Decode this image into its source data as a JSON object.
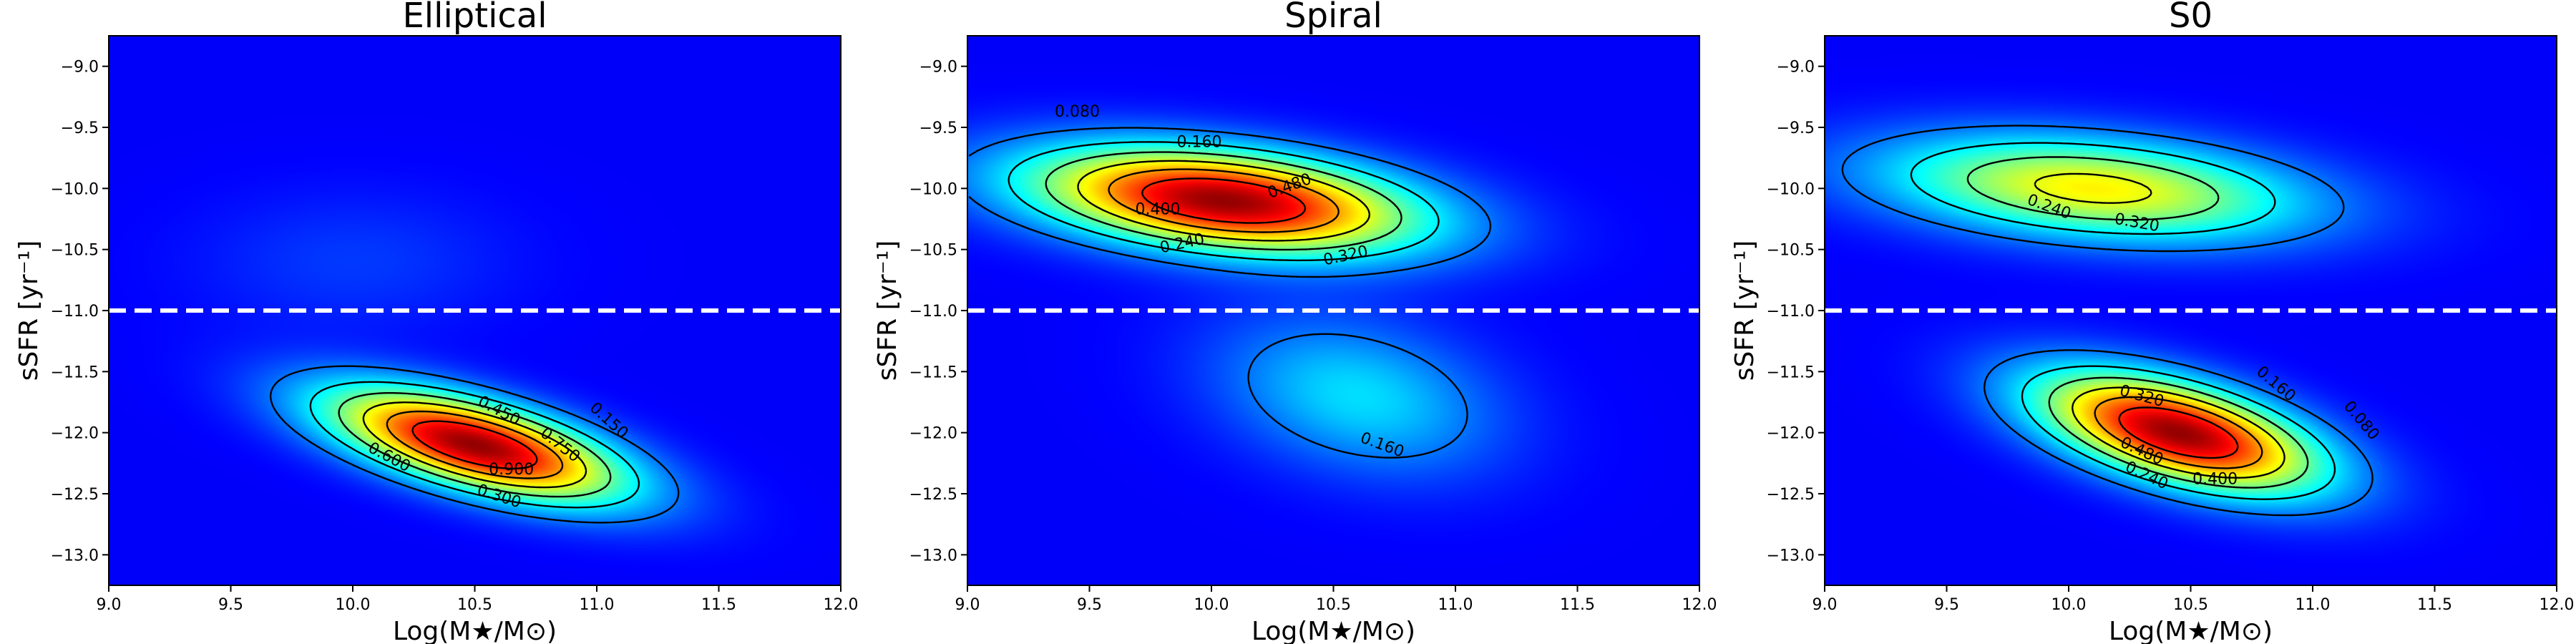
{
  "chart_data": [
    {
      "type": "heatmap",
      "title": "Elliptical",
      "xlabel": "Log(M★/M⊙)",
      "ylabel": "sSFR [yr⁻¹]",
      "xlim": [
        9.0,
        12.0
      ],
      "ylim": [
        -13.25,
        -8.75
      ],
      "xticks": [
        "9.0",
        "9.5",
        "10.0",
        "10.5",
        "11.0",
        "11.5",
        "12.0"
      ],
      "yticks": [
        "-9.0",
        "-9.5",
        "-10.0",
        "-10.5",
        "-11.0",
        "-11.5",
        "-12.0",
        "-12.5",
        "-13.0"
      ],
      "threshold_line": -11.0,
      "density_peaks": [
        {
          "x": 10.5,
          "y": -12.1,
          "sx": 0.42,
          "sy": 0.32,
          "rho": -0.62,
          "w": 1.0
        },
        {
          "x": 10.0,
          "y": -10.6,
          "sx": 0.45,
          "sy": 0.4,
          "rho": 0.0,
          "w": 0.07
        }
      ],
      "contour_levels": [
        "0.150",
        "0.300",
        "0.450",
        "0.600",
        "0.750",
        "0.900"
      ],
      "contour_labels": [
        {
          "text": "0.150",
          "x": 11.05,
          "y": -11.9,
          "angle": 42
        },
        {
          "text": "0.300",
          "x": 10.6,
          "y": -12.52,
          "angle": 18
        },
        {
          "text": "0.450",
          "x": 10.6,
          "y": -11.82,
          "angle": 28
        },
        {
          "text": "0.600",
          "x": 10.15,
          "y": -12.2,
          "angle": 28
        },
        {
          "text": "0.750",
          "x": 10.85,
          "y": -12.1,
          "angle": 38
        },
        {
          "text": "0.900",
          "x": 10.65,
          "y": -12.3,
          "angle": 0
        }
      ]
    },
    {
      "type": "heatmap",
      "title": "Spiral",
      "xlabel": "Log(M★/M⊙)",
      "ylabel": "sSFR [yr⁻¹]",
      "xlim": [
        9.0,
        12.0
      ],
      "ylim": [
        -13.25,
        -8.75
      ],
      "xticks": [
        "9.0",
        "9.5",
        "10.0",
        "10.5",
        "11.0",
        "11.5",
        "12.0"
      ],
      "yticks": [
        "-9.0",
        "-9.5",
        "-10.0",
        "-10.5",
        "-11.0",
        "-11.5",
        "-12.0",
        "-12.5",
        "-13.0"
      ],
      "threshold_line": -11.0,
      "density_peaks": [
        {
          "x": 10.05,
          "y": -10.1,
          "sx": 0.55,
          "sy": 0.3,
          "rho": -0.35,
          "w": 1.0
        },
        {
          "x": 10.6,
          "y": -11.7,
          "sx": 0.4,
          "sy": 0.45,
          "rho": -0.3,
          "w": 0.26
        }
      ],
      "contour_levels": [
        "0.080",
        "0.160",
        "0.240",
        "0.320",
        "0.400",
        "0.480"
      ],
      "contour_labels": [
        {
          "text": "0.080",
          "x": 9.45,
          "y": -9.37,
          "angle": 0
        },
        {
          "text": "0.160",
          "x": 9.95,
          "y": -9.62,
          "angle": 0
        },
        {
          "text": "0.240",
          "x": 9.88,
          "y": -10.45,
          "angle": -12
        },
        {
          "text": "0.320",
          "x": 10.55,
          "y": -10.55,
          "angle": -12
        },
        {
          "text": "0.400",
          "x": 9.78,
          "y": -10.17,
          "angle": 0
        },
        {
          "text": "0.480",
          "x": 10.32,
          "y": -9.98,
          "angle": -20
        },
        {
          "text": "0.160",
          "x": 10.7,
          "y": -12.1,
          "angle": 20
        }
      ]
    },
    {
      "type": "heatmap",
      "title": "S0",
      "xlabel": "Log(M★/M⊙)",
      "ylabel": "sSFR [yr⁻¹]",
      "xlim": [
        9.0,
        12.0
      ],
      "ylim": [
        -13.25,
        -8.75
      ],
      "xticks": [
        "9.0",
        "9.5",
        "10.0",
        "10.5",
        "11.0",
        "11.5",
        "12.0"
      ],
      "yticks": [
        "-9.0",
        "-9.5",
        "-10.0",
        "-10.5",
        "-11.0",
        "-11.5",
        "-12.0",
        "-12.5",
        "-13.0"
      ],
      "threshold_line": -11.0,
      "density_peaks": [
        {
          "x": 10.45,
          "y": -12.0,
          "sx": 0.4,
          "sy": 0.34,
          "rho": -0.55,
          "w": 1.0
        },
        {
          "x": 10.1,
          "y": -10.0,
          "sx": 0.6,
          "sy": 0.3,
          "rho": -0.3,
          "w": 0.6
        }
      ],
      "contour_levels": [
        "0.080",
        "0.160",
        "0.240",
        "0.320",
        "0.400",
        "0.480"
      ],
      "contour_labels": [
        {
          "text": "0.240",
          "x": 9.92,
          "y": -10.15,
          "angle": 20
        },
        {
          "text": "0.320",
          "x": 10.28,
          "y": -10.28,
          "angle": 10
        },
        {
          "text": "0.320",
          "x": 10.3,
          "y": -11.7,
          "angle": 15
        },
        {
          "text": "0.160",
          "x": 10.85,
          "y": -11.6,
          "angle": 40
        },
        {
          "text": "0.080",
          "x": 11.2,
          "y": -11.9,
          "angle": 50
        },
        {
          "text": "0.480",
          "x": 10.3,
          "y": -12.15,
          "angle": 25
        },
        {
          "text": "0.400",
          "x": 10.6,
          "y": -12.38,
          "angle": 0
        },
        {
          "text": "0.240",
          "x": 10.32,
          "y": -12.35,
          "angle": 25
        }
      ]
    }
  ]
}
